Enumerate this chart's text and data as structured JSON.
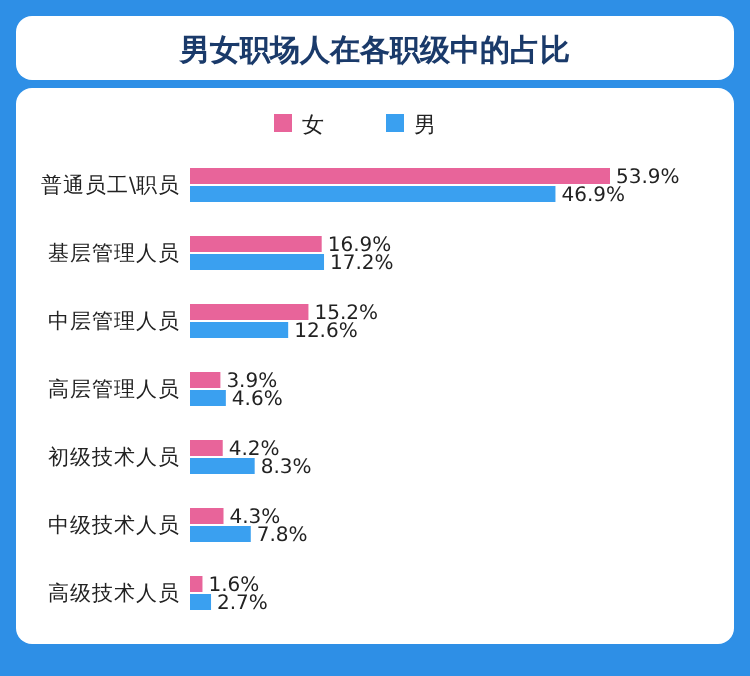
{
  "chart_data": {
    "type": "bar",
    "orientation": "horizontal",
    "title": "男女职场人在各职级中的占比",
    "legend": "top",
    "categories": [
      "普通员工\\职员",
      "基层管理人员",
      "中层管理人员",
      "高层管理人员",
      "初级技术人员",
      "中级技术人员",
      "高级技术人员"
    ],
    "series": [
      {
        "name": "女",
        "color": "#e8649a",
        "values": [
          53.9,
          16.9,
          15.2,
          3.9,
          4.2,
          4.3,
          1.6
        ],
        "value_labels": [
          "53.9%",
          "16.9%",
          "15.2%",
          "3.9%",
          "4.2%",
          "4.3%",
          "1.6%"
        ]
      },
      {
        "name": "男",
        "color": "#3aa0f0",
        "values": [
          46.9,
          17.2,
          12.6,
          4.6,
          8.3,
          7.8,
          2.7
        ],
        "value_labels": [
          "46.9%",
          "17.2%",
          "12.6%",
          "4.6%",
          "8.3%",
          "7.8%",
          "2.7%"
        ]
      }
    ]
  }
}
